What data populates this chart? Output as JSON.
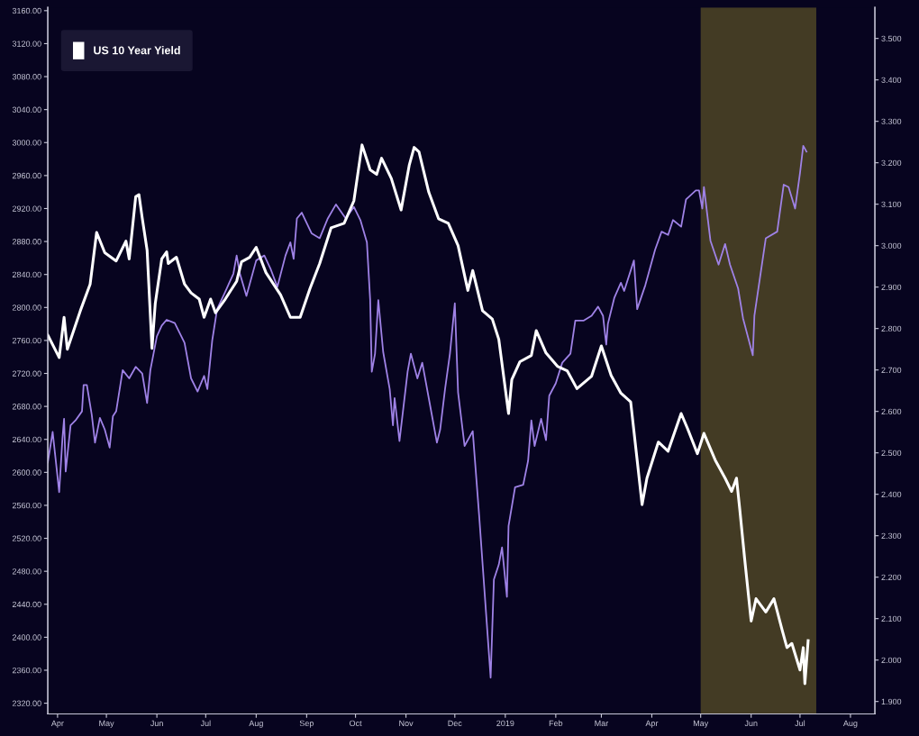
{
  "chart_data": {
    "type": "line",
    "xlim": [
      "2018-03-26",
      "2019-08-16"
    ],
    "xticks": [
      {
        "value": "2018-04-01",
        "label": "Apr"
      },
      {
        "value": "2018-05-01",
        "label": "May"
      },
      {
        "value": "2018-06-01",
        "label": "Jun"
      },
      {
        "value": "2018-07-01",
        "label": "Jul"
      },
      {
        "value": "2018-08-01",
        "label": "Aug"
      },
      {
        "value": "2018-09-01",
        "label": "Sep"
      },
      {
        "value": "2018-10-01",
        "label": "Oct"
      },
      {
        "value": "2018-11-01",
        "label": "Nov"
      },
      {
        "value": "2018-12-01",
        "label": "Dec"
      },
      {
        "value": "2019-01-01",
        "label": "2019"
      },
      {
        "value": "2019-02-01",
        "label": "Feb"
      },
      {
        "value": "2019-03-01",
        "label": "Mar"
      },
      {
        "value": "2019-04-01",
        "label": "Apr"
      },
      {
        "value": "2019-05-01",
        "label": "May"
      },
      {
        "value": "2019-06-01",
        "label": "Jun"
      },
      {
        "value": "2019-07-01",
        "label": "Jul"
      },
      {
        "value": "2019-08-01",
        "label": "Aug"
      }
    ],
    "ylim": [
      2307,
      3164
    ],
    "yticks": [
      {
        "value": 2320,
        "label": "2320.00"
      },
      {
        "value": 2360,
        "label": "2360.00"
      },
      {
        "value": 2400,
        "label": "2400.00"
      },
      {
        "value": 2440,
        "label": "2440.00"
      },
      {
        "value": 2480,
        "label": "2480.00"
      },
      {
        "value": 2520,
        "label": "2520.00"
      },
      {
        "value": 2560,
        "label": "2560.00"
      },
      {
        "value": 2600,
        "label": "2600.00"
      },
      {
        "value": 2640,
        "label": "2640.00"
      },
      {
        "value": 2680,
        "label": "2680.00"
      },
      {
        "value": 2720,
        "label": "2720.00"
      },
      {
        "value": 2760,
        "label": "2760.00"
      },
      {
        "value": 2800,
        "label": "2800.00"
      },
      {
        "value": 2840,
        "label": "2840.00"
      },
      {
        "value": 2880,
        "label": "2880.00"
      },
      {
        "value": 2920,
        "label": "2920.00"
      },
      {
        "value": 2960,
        "label": "2960.00"
      },
      {
        "value": 3000,
        "label": "3000.00"
      },
      {
        "value": 3040,
        "label": "3040.00"
      },
      {
        "value": 3080,
        "label": "3080.00"
      },
      {
        "value": 3120,
        "label": "3120.00"
      },
      {
        "value": 3160,
        "label": "3160.00"
      }
    ],
    "y2lim": [
      1.87,
      3.575
    ],
    "y2ticks": [
      {
        "value": 1.9,
        "label": "1.900"
      },
      {
        "value": 2.0,
        "label": "2.000"
      },
      {
        "value": 2.1,
        "label": "2.100"
      },
      {
        "value": 2.2,
        "label": "2.200"
      },
      {
        "value": 2.3,
        "label": "2.300"
      },
      {
        "value": 2.4,
        "label": "2.400"
      },
      {
        "value": 2.5,
        "label": "2.500"
      },
      {
        "value": 2.6,
        "label": "2.600"
      },
      {
        "value": 2.7,
        "label": "2.700"
      },
      {
        "value": 2.8,
        "label": "2.800"
      },
      {
        "value": 2.9,
        "label": "2.900"
      },
      {
        "value": 3.0,
        "label": "3.000"
      },
      {
        "value": 3.1,
        "label": "3.100"
      },
      {
        "value": 3.2,
        "label": "3.200"
      },
      {
        "value": 3.3,
        "label": "3.300"
      },
      {
        "value": 3.4,
        "label": "3.400"
      },
      {
        "value": 3.5,
        "label": "3.500"
      }
    ],
    "bands": [
      {
        "axis": "x",
        "from": "2019-05-01",
        "to": "2019-07-11",
        "color": "#433b24"
      }
    ],
    "grid": false,
    "legend": "top left",
    "series": [
      {
        "color": "#9f82e6",
        "x": [
          "2018-03-26",
          "2018-03-29",
          "2018-04-02",
          "2018-04-04",
          "2018-04-05",
          "2018-04-06",
          "2018-04-09",
          "2018-04-12",
          "2018-04-16",
          "2018-04-17",
          "2018-04-19",
          "2018-04-22",
          "2018-04-24",
          "2018-04-27",
          "2018-04-30",
          "2018-05-03",
          "2018-05-05",
          "2018-05-07",
          "2018-05-11",
          "2018-05-15",
          "2018-05-19",
          "2018-05-23",
          "2018-05-26",
          "2018-05-28",
          "2018-06-01",
          "2018-06-04",
          "2018-06-07",
          "2018-06-12",
          "2018-06-18",
          "2018-06-22",
          "2018-06-26",
          "2018-06-30",
          "2018-07-02",
          "2018-07-05",
          "2018-07-08",
          "2018-07-13",
          "2018-07-18",
          "2018-07-20",
          "2018-07-22",
          "2018-07-26",
          "2018-08-01",
          "2018-08-06",
          "2018-08-10",
          "2018-08-14",
          "2018-08-19",
          "2018-08-22",
          "2018-08-24",
          "2018-08-26",
          "2018-08-29",
          "2018-09-04",
          "2018-09-09",
          "2018-09-14",
          "2018-09-19",
          "2018-09-25",
          "2018-09-30",
          "2018-10-04",
          "2018-10-08",
          "2018-10-10",
          "2018-10-11",
          "2018-10-13",
          "2018-10-15",
          "2018-10-18",
          "2018-10-22",
          "2018-10-24",
          "2018-10-25",
          "2018-10-28",
          "2018-11-02",
          "2018-11-04",
          "2018-11-08",
          "2018-11-11",
          "2018-11-15",
          "2018-11-20",
          "2018-11-22",
          "2018-11-25",
          "2018-11-28",
          "2018-12-01",
          "2018-12-03",
          "2018-12-07",
          "2018-12-12",
          "2018-12-16",
          "2018-12-23",
          "2018-12-25",
          "2018-12-28",
          "2018-12-30",
          "2019-01-02",
          "2019-01-03",
          "2019-01-07",
          "2019-01-12",
          "2019-01-15",
          "2019-01-17",
          "2019-01-19",
          "2019-01-23",
          "2019-01-26",
          "2019-01-28",
          "2019-02-01",
          "2019-02-05",
          "2019-02-10",
          "2019-02-13",
          "2019-02-18",
          "2019-02-23",
          "2019-02-27",
          "2019-03-02",
          "2019-03-04",
          "2019-03-05",
          "2019-03-09",
          "2019-03-13",
          "2019-03-15",
          "2019-03-21",
          "2019-03-23",
          "2019-03-28",
          "2019-04-03",
          "2019-04-07",
          "2019-04-11",
          "2019-04-14",
          "2019-04-19",
          "2019-04-22",
          "2019-04-28",
          "2019-04-30",
          "2019-05-02",
          "2019-05-03",
          "2019-05-07",
          "2019-05-12",
          "2019-05-16",
          "2019-05-19",
          "2019-05-24",
          "2019-05-27",
          "2019-06-02",
          "2019-06-03",
          "2019-06-10",
          "2019-06-17",
          "2019-06-21",
          "2019-06-24",
          "2019-06-28",
          "2019-07-01",
          "2019-07-03",
          "2019-07-05"
        ],
        "values": [
          2612,
          2649,
          2576,
          2641,
          2665,
          2601,
          2657,
          2663,
          2674,
          2706,
          2706,
          2670,
          2636,
          2666,
          2652,
          2630,
          2668,
          2674,
          2724,
          2714,
          2728,
          2720,
          2684,
          2724,
          2765,
          2778,
          2785,
          2781,
          2757,
          2714,
          2698,
          2717,
          2701,
          2760,
          2798,
          2819,
          2841,
          2863,
          2841,
          2814,
          2857,
          2863,
          2846,
          2825,
          2863,
          2879,
          2859,
          2908,
          2915,
          2890,
          2884,
          2908,
          2925,
          2908,
          2922,
          2906,
          2879,
          2809,
          2722,
          2744,
          2809,
          2746,
          2701,
          2657,
          2690,
          2638,
          2722,
          2744,
          2714,
          2733,
          2690,
          2636,
          2652,
          2701,
          2744,
          2805,
          2697,
          2632,
          2650,
          2546,
          2351,
          2470,
          2488,
          2509,
          2449,
          2535,
          2582,
          2585,
          2614,
          2663,
          2632,
          2665,
          2639,
          2693,
          2708,
          2733,
          2744,
          2784,
          2784,
          2790,
          2801,
          2790,
          2755,
          2780,
          2812,
          2830,
          2820,
          2857,
          2798,
          2827,
          2870,
          2892,
          2888,
          2906,
          2898,
          2931,
          2942,
          2942,
          2920,
          2946,
          2881,
          2852,
          2877,
          2852,
          2823,
          2787,
          2742,
          2790,
          2884,
          2892,
          2949,
          2946,
          2920,
          2963,
          2996,
          2989
        ]
      },
      {
        "name": "US 10 Year Yield",
        "color": "#ffffff",
        "axis": "y2",
        "x": [
          "2018-03-26",
          "2018-04-02",
          "2018-04-05",
          "2018-04-07",
          "2018-04-15",
          "2018-04-21",
          "2018-04-25",
          "2018-04-30",
          "2018-05-07",
          "2018-05-13",
          "2018-05-15",
          "2018-05-19",
          "2018-05-21",
          "2018-05-23",
          "2018-05-26",
          "2018-05-29",
          "2018-05-31",
          "2018-06-04",
          "2018-06-07",
          "2018-06-08",
          "2018-06-13",
          "2018-06-18",
          "2018-06-22",
          "2018-06-27",
          "2018-06-30",
          "2018-07-04",
          "2018-07-07",
          "2018-07-13",
          "2018-07-20",
          "2018-07-23",
          "2018-07-28",
          "2018-08-01",
          "2018-08-07",
          "2018-08-16",
          "2018-08-22",
          "2018-08-28",
          "2018-09-03",
          "2018-09-09",
          "2018-09-16",
          "2018-09-24",
          "2018-09-30",
          "2018-10-05",
          "2018-10-10",
          "2018-10-14",
          "2018-10-17",
          "2018-10-23",
          "2018-10-29",
          "2018-11-03",
          "2018-11-06",
          "2018-11-09",
          "2018-11-15",
          "2018-11-21",
          "2018-11-27",
          "2018-12-03",
          "2018-12-09",
          "2018-12-12",
          "2018-12-18",
          "2018-12-24",
          "2018-12-28",
          "2019-01-03",
          "2019-01-05",
          "2019-01-10",
          "2019-01-17",
          "2019-01-20",
          "2019-01-26",
          "2019-02-02",
          "2019-02-08",
          "2019-02-14",
          "2019-02-23",
          "2019-03-01",
          "2019-03-07",
          "2019-03-13",
          "2019-03-19",
          "2019-03-23",
          "2019-03-26",
          "2019-03-29",
          "2019-04-05",
          "2019-04-11",
          "2019-04-19",
          "2019-04-23",
          "2019-04-29",
          "2019-05-03",
          "2019-05-10",
          "2019-05-16",
          "2019-05-20",
          "2019-05-23",
          "2019-05-25",
          "2019-05-28",
          "2019-06-01",
          "2019-06-04",
          "2019-06-10",
          "2019-06-15",
          "2019-06-20",
          "2019-06-23",
          "2019-06-26",
          "2019-07-01",
          "2019-07-03",
          "2019-07-04",
          "2019-07-06"
        ],
        "values": [
          2.784,
          2.73,
          2.827,
          2.75,
          2.843,
          2.907,
          3.032,
          2.983,
          2.963,
          3.011,
          2.968,
          3.118,
          3.123,
          3.067,
          2.989,
          2.752,
          2.86,
          2.968,
          2.985,
          2.957,
          2.972,
          2.907,
          2.886,
          2.871,
          2.827,
          2.871,
          2.838,
          2.871,
          2.914,
          2.961,
          2.972,
          2.996,
          2.935,
          2.881,
          2.827,
          2.827,
          2.896,
          2.957,
          3.043,
          3.054,
          3.108,
          3.243,
          3.183,
          3.172,
          3.211,
          3.162,
          3.086,
          3.194,
          3.237,
          3.226,
          3.129,
          3.065,
          3.054,
          3.0,
          2.892,
          2.94,
          2.843,
          2.823,
          2.774,
          2.595,
          2.677,
          2.72,
          2.735,
          2.795,
          2.741,
          2.709,
          2.698,
          2.655,
          2.685,
          2.758,
          2.687,
          2.644,
          2.623,
          2.482,
          2.375,
          2.439,
          2.526,
          2.504,
          2.595,
          2.558,
          2.498,
          2.547,
          2.482,
          2.439,
          2.407,
          2.439,
          2.364,
          2.245,
          2.094,
          2.148,
          2.116,
          2.148,
          2.073,
          2.03,
          2.04,
          1.976,
          2.03,
          1.943,
          2.047
        ]
      }
    ]
  }
}
